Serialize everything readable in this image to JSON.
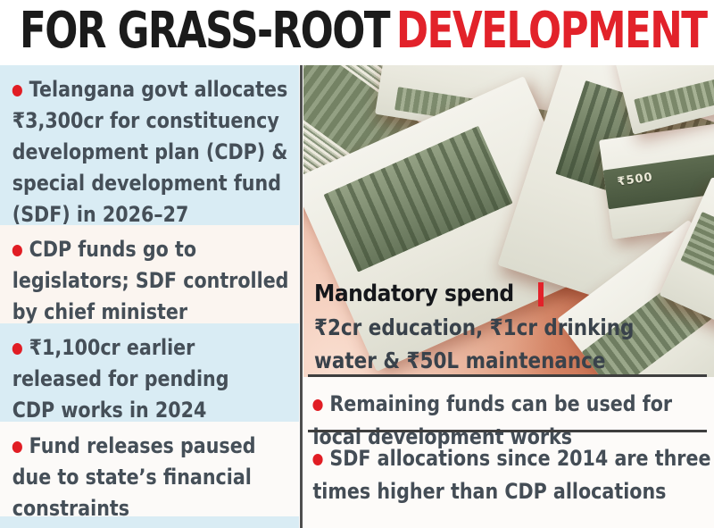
{
  "title": {
    "part_black": "FOR GRASS-ROOT",
    "part_red": "DEVELOPMENT"
  },
  "left_panel": {
    "bullets": [
      {
        "text": "Telangana govt allocates\n₹3,300cr for constituency\ndevelopment plan (CDP) &\nspecial development fund\n(SDF) in 2026–27"
      },
      {
        "text": "CDP funds go to\nlegislators; SDF controlled\nby chief minister"
      },
      {
        "text": "₹1,100cr earlier\nreleased for pending\nCDP works in 2024"
      },
      {
        "text": "Fund releases paused\ndue to state’s financial\nconstraints"
      }
    ]
  },
  "right_panel": {
    "mandatory_heading": "Mandatory spend",
    "mandatory_separator": "|",
    "mandatory_detail": "₹2cr education, ₹1cr drinking\nwater & ₹50L maintenance",
    "bullets": [
      {
        "text": "Remaining funds can be used for\nlocal development works"
      },
      {
        "text": "SDF allocations since 2014 are three\ntimes higher than CDP allocations"
      }
    ]
  },
  "photo": {
    "note_label": "₹500"
  },
  "colors": {
    "accent_red": "#e2222a",
    "panel_blue": "#d9ecf4",
    "panel_warm_white": "#fbf6f2",
    "text_dark": "#454f58",
    "title_black": "#1b1b1b",
    "divider_gray": "#4f4f4f",
    "photo_surface": "#e09c7e"
  }
}
